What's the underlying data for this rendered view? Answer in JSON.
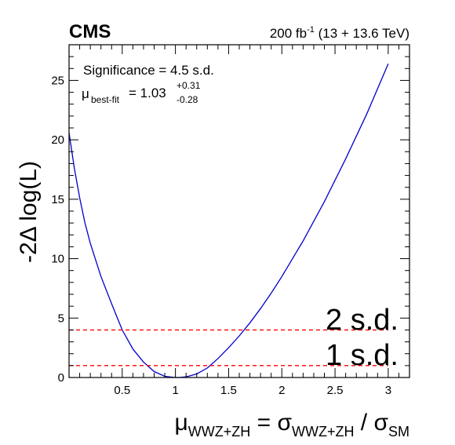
{
  "chart_data": {
    "type": "line",
    "experiment_label": "CMS",
    "lumi_label": {
      "value": "200 fb",
      "exponent": "-1",
      "energy": "(13 + 13.6 TeV)"
    },
    "significance_text": "Significance = 4.5 s.d.",
    "best_fit": {
      "symbol": "μ",
      "subscript": "best-fit",
      "equals_value": "= 1.03",
      "up": "+0.31",
      "down": "-0.28"
    },
    "ylabel": "-2Δ log(L)",
    "xlabel": {
      "mu": "μ",
      "mu_sub": "WWZ+ZH",
      "eq": "=",
      "sigma": "σ",
      "sigma_sub": "WWZ+ZH",
      "slash": "/",
      "sigma2": "σ",
      "sigma2_sub": "SM"
    },
    "xlim": [
      0,
      3.2
    ],
    "ylim": [
      0,
      28
    ],
    "x_ticks": [
      0.5,
      1,
      1.5,
      2,
      2.5,
      3
    ],
    "x_tick_labels": [
      "0.5",
      "1",
      "1.5",
      "2",
      "2.5",
      "3"
    ],
    "y_ticks": [
      0,
      5,
      10,
      15,
      20,
      25
    ],
    "y_tick_labels": [
      "0",
      "5",
      "10",
      "15",
      "20",
      "25"
    ],
    "reference_lines": [
      {
        "y": 1,
        "label": "1 s.d."
      },
      {
        "y": 4,
        "label": "2 s.d."
      }
    ],
    "series": [
      {
        "color": "#0000cc",
        "x": [
          0.0,
          0.05,
          0.1,
          0.15,
          0.2,
          0.3,
          0.4,
          0.5,
          0.6,
          0.7,
          0.8,
          0.9,
          1.0,
          1.03,
          1.1,
          1.2,
          1.3,
          1.4,
          1.5,
          1.6,
          1.7,
          1.8,
          1.9,
          2.0,
          2.2,
          2.4,
          2.6,
          2.8,
          3.0
        ],
        "y": [
          20.6,
          17.6,
          15.1,
          13.0,
          11.3,
          8.5,
          6.2,
          4.0,
          2.4,
          1.3,
          0.5,
          0.1,
          0.0,
          0.0,
          0.05,
          0.3,
          0.8,
          1.6,
          2.5,
          3.5,
          4.6,
          5.8,
          7.1,
          8.5,
          11.5,
          14.8,
          18.4,
          22.2,
          26.4
        ]
      }
    ],
    "colors": {
      "curve": "#0000cc",
      "reference": "#ff0000"
    }
  }
}
